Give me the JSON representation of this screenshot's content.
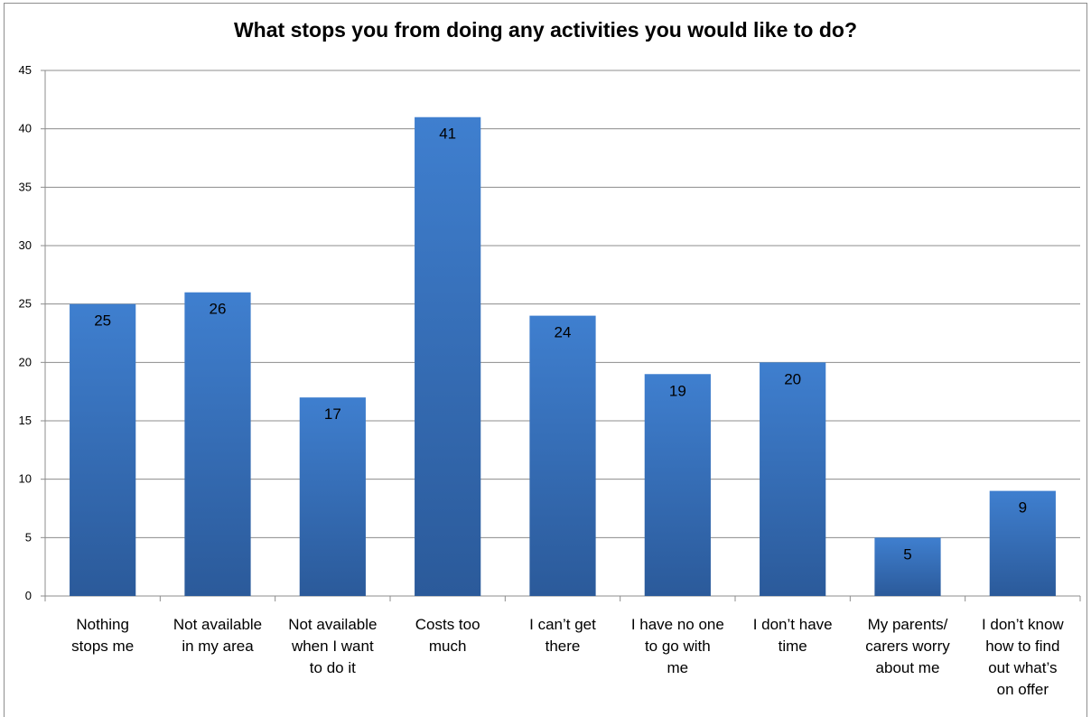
{
  "chart_data": {
    "type": "bar",
    "title": "What stops you from doing any activities you would like to do?",
    "xlabel": "",
    "ylabel": "",
    "ylim": [
      0,
      45
    ],
    "ytick_step": 5,
    "grid": true,
    "legend": "none",
    "categories": [
      [
        "Nothing",
        "stops me"
      ],
      [
        "Not available",
        "in my area"
      ],
      [
        "Not available",
        "when I want",
        "to do it"
      ],
      [
        "Costs too",
        "much"
      ],
      [
        "I can’t get",
        "there"
      ],
      [
        "I have no one",
        "to go with",
        "me"
      ],
      [
        "I don’t have",
        "time"
      ],
      [
        "My parents/",
        "carers worry",
        "about me"
      ],
      [
        "I don’t know",
        "how to find",
        "out what’s",
        "on offer"
      ]
    ],
    "values": [
      25,
      26,
      17,
      41,
      24,
      19,
      20,
      5,
      9
    ],
    "colors": {
      "bar_top": "#3f7fcf",
      "bar_bottom": "#2b5a9a",
      "grid": "#8c8c8c",
      "axis": "#8c8c8c"
    }
  }
}
